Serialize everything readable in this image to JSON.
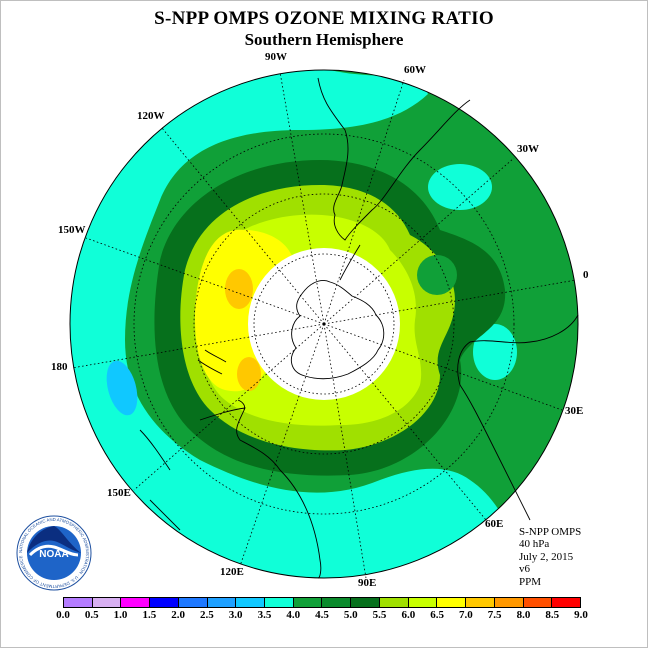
{
  "title": "S-NPP OMPS OZONE MIXING RATIO",
  "subtitle": "Southern Hemisphere",
  "info": {
    "product": "S-NPP OMPS",
    "level": "40 hPa",
    "date": "July 2, 2015",
    "version": "v6",
    "units": "PPM"
  },
  "logo": {
    "text": "NOAA",
    "ring_text": "NATIONAL OCEANIC AND ATMOSPHERIC ADMINISTRATION · U.S. DEPARTMENT OF COMMERCE"
  },
  "longitude_labels": [
    "90W",
    "60W",
    "30W",
    "0",
    "30E",
    "60E",
    "90E",
    "120E",
    "150E",
    "180",
    "150W",
    "120W"
  ],
  "colorbar": {
    "ticks": [
      "0.0",
      "0.5",
      "1.0",
      "1.5",
      "2.0",
      "2.5",
      "3.0",
      "3.5",
      "4.0",
      "4.5",
      "5.0",
      "5.5",
      "6.0",
      "6.5",
      "7.0",
      "7.5",
      "8.0",
      "8.5",
      "9.0"
    ],
    "colors": [
      "#b47cff",
      "#d8b0f2",
      "#ff00ff",
      "#0000ff",
      "#1e78ff",
      "#1ea0ff",
      "#10c8ff",
      "#10ffd8",
      "#10a038",
      "#0a8a2c",
      "#06701c",
      "#a0e000",
      "#c8ff00",
      "#ffff00",
      "#ffc800",
      "#ff9800",
      "#ff5000",
      "#ff0000",
      "#8b5a2b"
    ]
  },
  "colors": {
    "c35": "#10ffd8",
    "c40": "#10a038",
    "c45": "#06701c",
    "c50": "#a0e000",
    "c55": "#c8ff00",
    "c60": "#ffff00",
    "c65": "#ffc800",
    "c30": "#10c8ff"
  }
}
